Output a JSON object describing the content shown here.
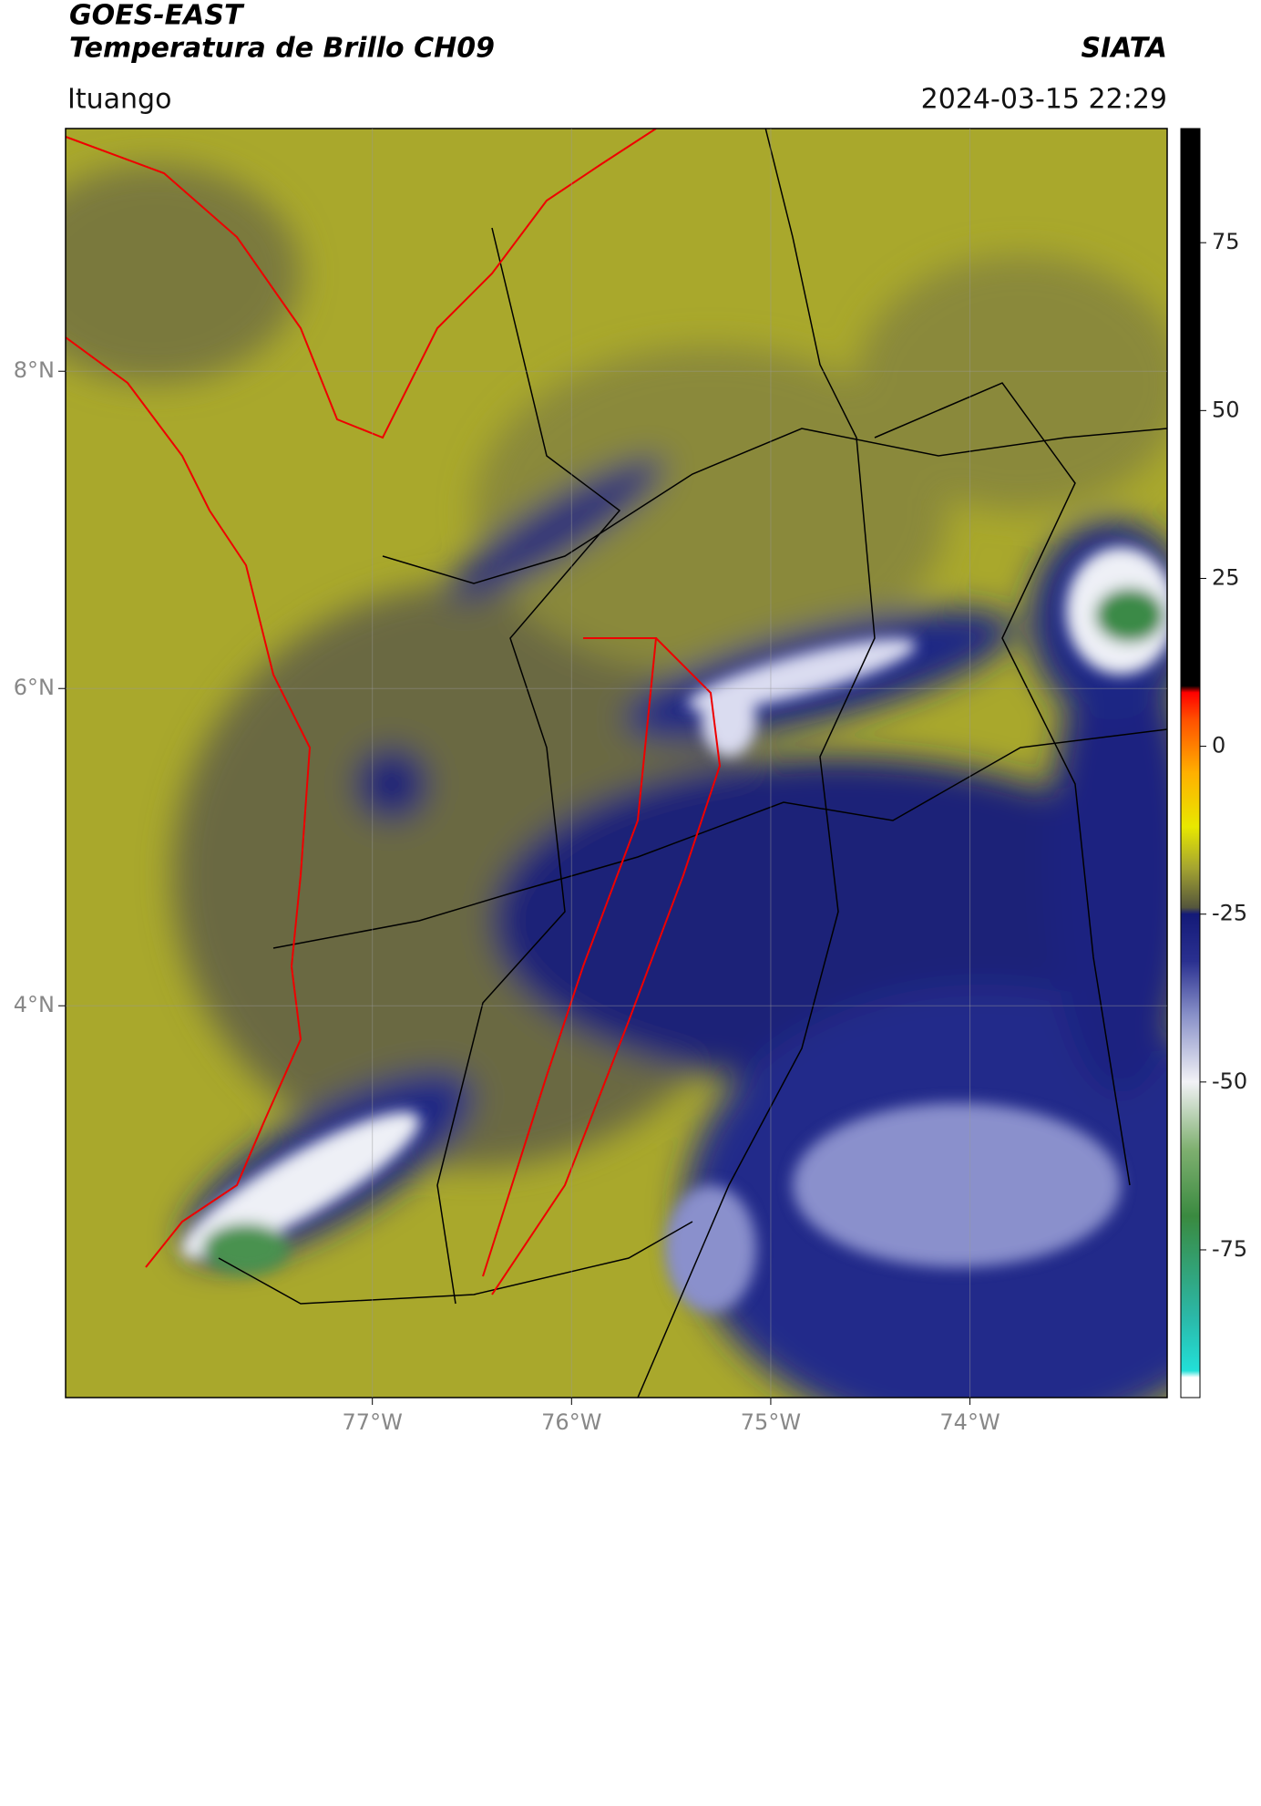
{
  "chart_data": {
    "type": "map",
    "title": "GOES-EAST",
    "subtitle": "Temperatura de Brillo CH09",
    "source": "SIATA",
    "region": "Ituango",
    "datetime": "2024-03-15 22:29",
    "xlim": [
      -78.54,
      -73.01
    ],
    "ylim": [
      1.53,
      9.53
    ],
    "xticks": [
      {
        "value": -77,
        "label": "77°W"
      },
      {
        "value": -76,
        "label": "76°W"
      },
      {
        "value": -75,
        "label": "75°W"
      },
      {
        "value": -74,
        "label": "74°W"
      }
    ],
    "yticks": [
      {
        "value": 8,
        "label": "8°N"
      },
      {
        "value": 6,
        "label": "6°N"
      },
      {
        "value": 4,
        "label": "4°N"
      }
    ],
    "grid": true,
    "colorbar": {
      "lim": [
        -97,
        92
      ],
      "ticks": [
        75,
        50,
        25,
        0,
        -25,
        -50,
        -75
      ],
      "stops": [
        {
          "value": -97,
          "color": "#ffffff"
        },
        {
          "value": -94,
          "color": "#ffffff"
        },
        {
          "value": -93,
          "color": "#22e0d8"
        },
        {
          "value": -85,
          "color": "#2bb8a8"
        },
        {
          "value": -70,
          "color": "#3a8a40"
        },
        {
          "value": -60,
          "color": "#7fb070"
        },
        {
          "value": -50,
          "color": "#f2f2f6"
        },
        {
          "value": -40,
          "color": "#8890c8"
        },
        {
          "value": -32,
          "color": "#2a3090"
        },
        {
          "value": -25,
          "color": "#141a78"
        },
        {
          "value": -24,
          "color": "#55563c"
        },
        {
          "value": -18,
          "color": "#a6a630"
        },
        {
          "value": -12,
          "color": "#e8e800"
        },
        {
          "value": -4,
          "color": "#ffb000"
        },
        {
          "value": 4,
          "color": "#ff5000"
        },
        {
          "value": 8,
          "color": "#ff0000"
        },
        {
          "value": 9,
          "color": "#000000"
        },
        {
          "value": 92,
          "color": "#000000"
        }
      ]
    }
  }
}
